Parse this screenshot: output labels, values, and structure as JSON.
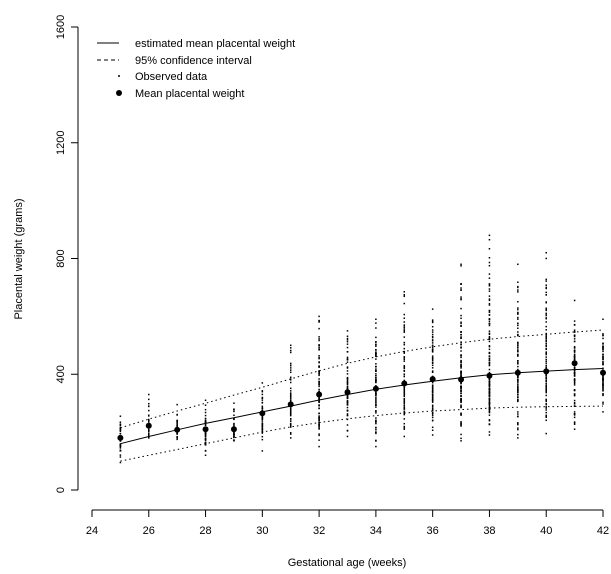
{
  "chart_data": {
    "type": "scatter",
    "title": "",
    "xlabel": "Gestational age (weeks)",
    "ylabel": "Placental weight (grams)",
    "xlim": [
      24,
      42
    ],
    "ylim": [
      0,
      1600
    ],
    "xticks": [
      24,
      26,
      28,
      30,
      32,
      34,
      36,
      38,
      40,
      42
    ],
    "yticks": [
      0,
      400,
      800,
      1200,
      1600
    ],
    "grid": false,
    "legend_position": "top-left",
    "legend": [
      {
        "label": "estimated mean placental weight",
        "style": "solid-line"
      },
      {
        "label": "95% confidence interval",
        "style": "dashed-line"
      },
      {
        "label": "Observed data",
        "style": "small-dot"
      },
      {
        "label": "Mean placental weight",
        "style": "filled-circle"
      }
    ],
    "estimated_mean": {
      "x": [
        25,
        26,
        27,
        28,
        29,
        30,
        31,
        32,
        33,
        34,
        35,
        36,
        37,
        38,
        39,
        40,
        41,
        42
      ],
      "y": [
        160,
        185,
        208,
        230,
        250,
        270,
        290,
        311,
        330,
        348,
        363,
        376,
        388,
        398,
        405,
        411,
        416,
        420
      ]
    },
    "ci_upper": {
      "x": [
        25,
        26,
        27,
        28,
        29,
        30,
        31,
        32,
        33,
        34,
        35,
        36,
        37,
        38,
        39,
        40,
        41,
        42
      ],
      "y": [
        215,
        245,
        273,
        300,
        328,
        355,
        384,
        412,
        438,
        460,
        479,
        495,
        509,
        521,
        530,
        538,
        546,
        553
      ]
    },
    "ci_lower": {
      "x": [
        25,
        26,
        27,
        28,
        29,
        30,
        31,
        32,
        33,
        34,
        35,
        36,
        37,
        38,
        39,
        40,
        41,
        42
      ],
      "y": [
        100,
        120,
        140,
        160,
        180,
        200,
        218,
        233,
        246,
        257,
        266,
        273,
        278,
        283,
        286,
        288,
        289,
        290
      ]
    },
    "mean_placental_weight": {
      "x": [
        25,
        26,
        27,
        28,
        29,
        30,
        31,
        32,
        33,
        34,
        35,
        36,
        37,
        38,
        39,
        40,
        41,
        42
      ],
      "y": [
        180,
        222,
        208,
        210,
        210,
        265,
        296,
        330,
        338,
        350,
        368,
        383,
        382,
        395,
        405,
        410,
        438,
        405
      ]
    },
    "observed_ranges": {
      "x": [
        25,
        26,
        27,
        28,
        29,
        30,
        31,
        32,
        33,
        34,
        35,
        36,
        37,
        38,
        39,
        40,
        41,
        42
      ],
      "min": [
        95,
        180,
        175,
        120,
        170,
        135,
        180,
        150,
        185,
        150,
        185,
        190,
        170,
        190,
        180,
        195,
        210,
        270
      ],
      "max": [
        255,
        330,
        295,
        310,
        300,
        370,
        500,
        600,
        550,
        590,
        685,
        625,
        780,
        880,
        780,
        820,
        655,
        590
      ]
    }
  }
}
